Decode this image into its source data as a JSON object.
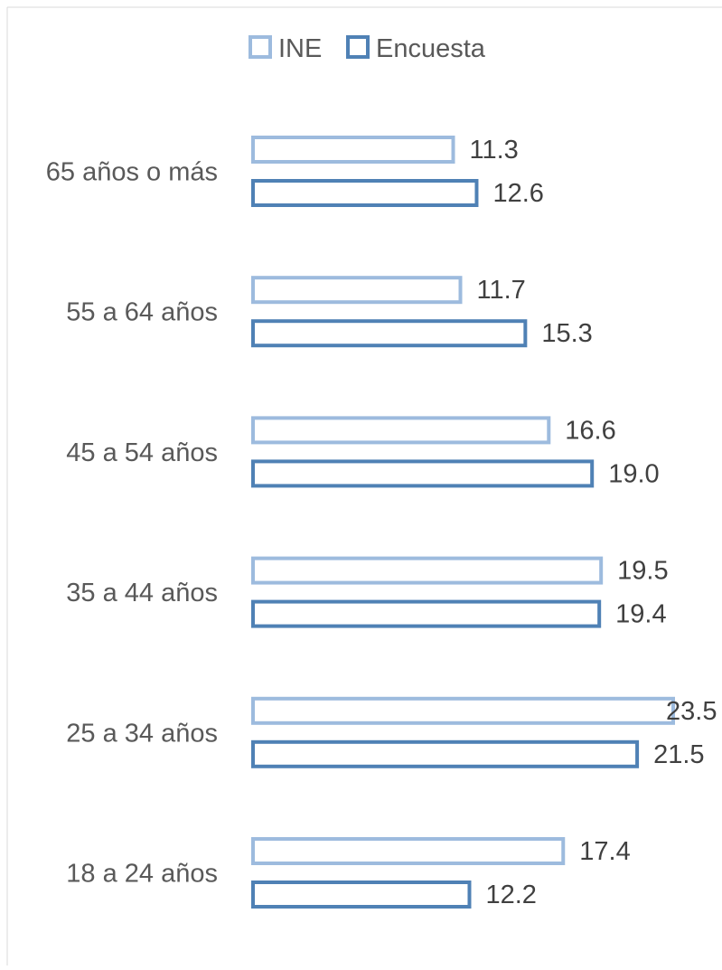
{
  "chart_data": {
    "type": "bar",
    "orientation": "horizontal",
    "title": "",
    "xlabel": "",
    "ylabel": "",
    "xlim": [
      0,
      23.5
    ],
    "grid": false,
    "legend_position": "top",
    "categories": [
      "65 años o más",
      "55 a 64 años",
      "45 a 54 años",
      "35 a 44 años",
      "25 a 34 años",
      "18 a 24 años"
    ],
    "series": [
      {
        "name": "INE",
        "color": "#9dbbde",
        "fill": "none",
        "values": [
          11.3,
          11.7,
          16.6,
          19.5,
          23.5,
          17.4
        ],
        "value_labels": [
          "11.3",
          "11.7",
          "16.6",
          "19.5",
          "23.5",
          "17.4"
        ]
      },
      {
        "name": "Encuesta",
        "color": "#4f81b5",
        "fill": "none",
        "values": [
          12.6,
          15.3,
          19.0,
          19.4,
          21.5,
          12.2
        ],
        "value_labels": [
          "12.6",
          "15.3",
          "19.0",
          "19.4",
          "21.5",
          "12.2"
        ]
      }
    ]
  }
}
